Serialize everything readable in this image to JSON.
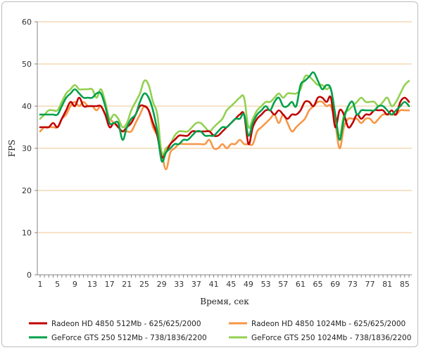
{
  "chart_data": {
    "type": "line",
    "title": "",
    "xlabel": "Время, сек",
    "ylabel": "FPS",
    "ylim": [
      0,
      60
    ],
    "yticks": [
      "0",
      "10",
      "20",
      "30",
      "40",
      "50",
      "60"
    ],
    "xticks": [
      "1",
      "5",
      "9",
      "13",
      "17",
      "21",
      "25",
      "29",
      "33",
      "37",
      "41",
      "45",
      "49",
      "53",
      "57",
      "61",
      "65",
      "69",
      "73",
      "77",
      "81",
      "85"
    ],
    "x": [
      1,
      2,
      3,
      4,
      5,
      6,
      7,
      8,
      9,
      10,
      11,
      12,
      13,
      14,
      15,
      16,
      17,
      18,
      19,
      20,
      21,
      22,
      23,
      24,
      25,
      26,
      27,
      28,
      29,
      30,
      31,
      32,
      33,
      34,
      35,
      36,
      37,
      38,
      39,
      40,
      41,
      42,
      43,
      44,
      45,
      46,
      47,
      48,
      49,
      50,
      51,
      52,
      53,
      54,
      55,
      56,
      57,
      58,
      59,
      60,
      61,
      62,
      63,
      64,
      65,
      66,
      67,
      68,
      69,
      70,
      71,
      72,
      73,
      74,
      75,
      76,
      77,
      78,
      79,
      80,
      81,
      82,
      83,
      84,
      85,
      86
    ],
    "grid": "horizontal",
    "legend_position": "bottom",
    "series": [
      {
        "name": "Radeon HD 4850 512Mb - 625/625/2000",
        "color": "#c00000",
        "values": [
          35,
          35,
          35,
          36,
          35,
          37,
          39,
          41,
          40,
          42,
          40,
          40,
          40,
          40,
          40,
          38,
          35,
          36,
          35,
          34,
          35,
          36,
          38,
          40,
          40,
          39,
          36,
          33,
          28,
          29,
          31,
          32,
          33,
          33,
          33,
          34,
          34,
          34,
          34,
          34,
          33,
          33,
          34,
          35,
          36,
          37,
          38,
          38,
          31,
          35,
          37,
          38,
          39,
          39,
          38,
          39,
          38,
          37,
          38,
          38,
          39,
          41,
          41,
          40,
          42,
          42,
          41,
          42,
          35,
          39,
          38,
          35,
          36,
          38,
          37,
          38,
          38,
          39,
          39,
          39,
          38,
          39,
          38,
          41,
          42,
          41
        ]
      },
      {
        "name": "Radeon HD 4850 1024Mb - 625/625/2000",
        "color": "#f79646",
        "values": [
          34,
          35,
          35,
          35,
          35,
          37,
          38,
          40,
          41,
          40,
          41,
          40,
          40,
          39,
          40,
          38,
          37,
          36,
          35,
          34,
          34,
          34,
          36,
          38,
          40,
          39,
          35,
          33,
          29,
          25,
          29,
          30,
          31,
          31,
          31,
          31,
          31,
          31,
          31,
          32,
          30,
          30,
          31,
          30,
          31,
          31,
          32,
          31,
          31,
          31,
          34,
          35,
          36,
          37,
          38,
          36,
          38,
          36,
          34,
          35,
          36,
          37,
          39,
          40,
          41,
          41,
          40,
          40,
          36,
          30,
          35,
          37,
          37,
          37,
          36,
          37,
          37,
          36,
          37,
          38,
          38,
          38,
          38,
          39,
          39,
          39
        ]
      },
      {
        "name": "GeForce GTS 250 512Mb - 738/1836/2200",
        "color": "#00a04b",
        "values": [
          38,
          38,
          38,
          38,
          38,
          40,
          42,
          43,
          44,
          43,
          42,
          42,
          42,
          43,
          43,
          40,
          36,
          36,
          36,
          32,
          35,
          37,
          38,
          41,
          43,
          42,
          39,
          34,
          27,
          29,
          30,
          31,
          31,
          32,
          32,
          33,
          34,
          34,
          33,
          33,
          33,
          34,
          35,
          35,
          36,
          37,
          37,
          38,
          33,
          36,
          38,
          39,
          40,
          39,
          41,
          42,
          40,
          40,
          41,
          40,
          45,
          46,
          47,
          48,
          46,
          44,
          45,
          44,
          38,
          32,
          37,
          40,
          41,
          38,
          39,
          39,
          39,
          39,
          40,
          40,
          39,
          38,
          39,
          40,
          41,
          40
        ]
      },
      {
        "name": "GeForce GTS 250 1024Mb - 738/1836/2200",
        "color": "#92d050",
        "values": [
          37,
          38,
          39,
          39,
          39,
          41,
          43,
          44,
          45,
          44,
          44,
          44,
          44,
          42,
          44,
          41,
          37,
          38,
          37,
          35,
          36,
          39,
          41,
          43,
          46,
          45,
          41,
          38,
          29,
          30,
          31,
          33,
          34,
          34,
          34,
          35,
          36,
          36,
          35,
          34,
          35,
          36,
          37,
          39,
          40,
          41,
          42,
          42,
          35,
          37,
          39,
          40,
          41,
          41,
          42,
          43,
          42,
          43,
          43,
          43,
          44,
          47,
          47,
          46,
          45,
          45,
          44,
          44,
          38,
          33,
          38,
          39,
          40,
          41,
          42,
          41,
          41,
          41,
          40,
          41,
          42,
          40,
          41,
          43,
          45,
          46
        ]
      }
    ]
  }
}
